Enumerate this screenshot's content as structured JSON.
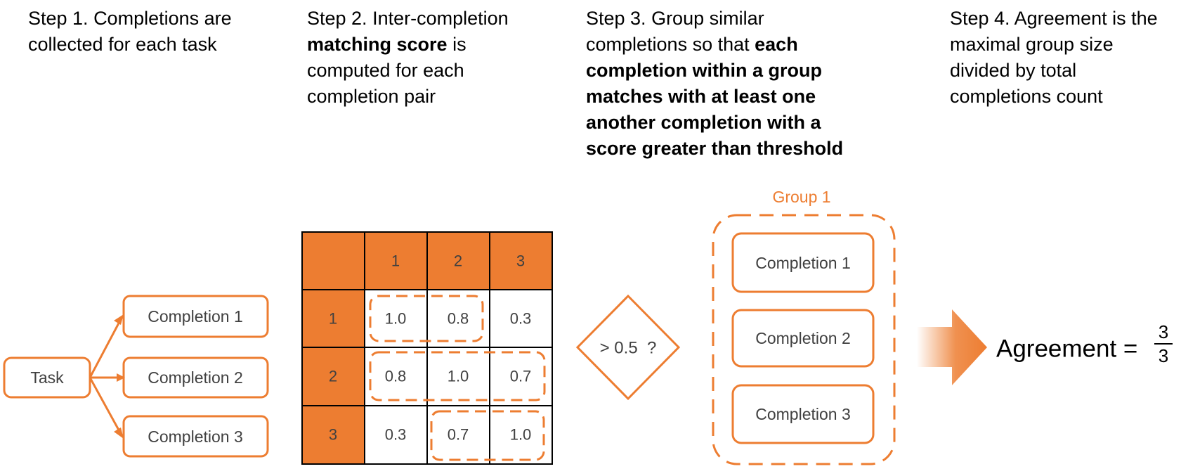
{
  "colors": {
    "accent": "#ED7D31",
    "text": "#000000",
    "muted": "#404040"
  },
  "steps": [
    {
      "plain1": "Step 1. Completions are collected for each task",
      "bold": "",
      "plain2": ""
    },
    {
      "plain1": "Step 2. Inter-completion",
      "bold": "matching score",
      "plain2": "is computed for each completion pair"
    },
    {
      "plain1": "Step 3. Group similar completions so that",
      "bold": "each completion within a group matches with at least one another completion with a score greater than threshold",
      "plain2": ""
    },
    {
      "plain1": "Step 4. Agreement is the maximal group size divided by total completions count",
      "bold": "",
      "plain2": ""
    }
  ],
  "tree": {
    "task": "Task",
    "completions": [
      "Completion 1",
      "Completion 2",
      "Completion 3"
    ]
  },
  "matrix": {
    "headers": [
      "1",
      "2",
      "3"
    ],
    "rows": [
      {
        "label": "1",
        "values": [
          "1.0",
          "0.8",
          "0.3"
        ]
      },
      {
        "label": "2",
        "values": [
          "0.8",
          "1.0",
          "0.7"
        ]
      },
      {
        "label": "3",
        "values": [
          "0.3",
          "0.7",
          "1.0"
        ]
      }
    ]
  },
  "threshold": {
    "label": "> 0.5  ?"
  },
  "group": {
    "title": "Group 1",
    "members": [
      "Completion 1",
      "Completion 2",
      "Completion 3"
    ]
  },
  "agreement": {
    "label": "Agreement =",
    "numerator": "3",
    "denominator": "3"
  }
}
